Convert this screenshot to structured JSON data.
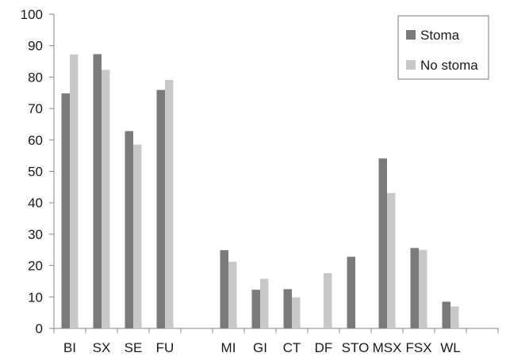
{
  "chart_data": {
    "type": "bar",
    "title": "",
    "xlabel": "",
    "ylabel": "",
    "ylim": [
      0,
      100
    ],
    "yticks": [
      0,
      10,
      20,
      30,
      40,
      50,
      60,
      70,
      80,
      90,
      100
    ],
    "grid": false,
    "legend_position": "top-right",
    "categories": [
      "BI",
      "SX",
      "SE",
      "FU",
      "",
      "MI",
      "GI",
      "CT",
      "DF",
      "STO",
      "MSX",
      "FSX",
      "WL",
      ""
    ],
    "series": [
      {
        "name": "Stoma",
        "color": "#7a7a7a",
        "values": [
          74.8,
          87.3,
          62.8,
          75.9,
          null,
          24.9,
          12.3,
          12.5,
          0,
          22.8,
          54.1,
          25.6,
          8.5,
          null
        ]
      },
      {
        "name": "No stoma",
        "color": "#c8c8c8",
        "values": [
          87.2,
          82.3,
          58.5,
          79.1,
          null,
          21.2,
          15.8,
          9.9,
          17.6,
          0,
          43.1,
          25.0,
          7.0,
          null
        ]
      }
    ]
  }
}
